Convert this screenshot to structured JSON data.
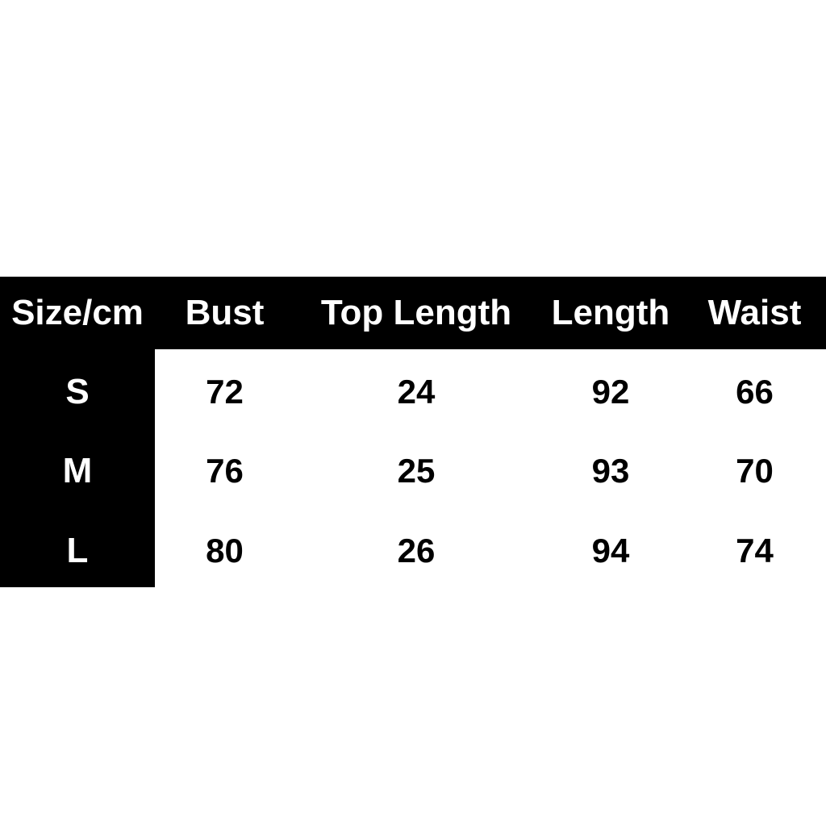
{
  "page": {
    "background": "#ffffff"
  },
  "chart_data": {
    "type": "table",
    "corner_header": "Size/cm",
    "unit": "cm",
    "columns": [
      "Bust",
      "Top Length",
      "Length",
      "Waist"
    ],
    "rows": [
      {
        "label": "S",
        "values": [
          "72",
          "24",
          "92",
          "66"
        ]
      },
      {
        "label": "M",
        "values": [
          "76",
          "25",
          "93",
          "70"
        ]
      },
      {
        "label": "L",
        "values": [
          "80",
          "26",
          "94",
          "74"
        ]
      }
    ],
    "colors": {
      "header_bg": "#000000",
      "header_text": "#ffffff",
      "row_label_bg": "#000000",
      "row_label_text": "#ffffff",
      "value_bg": "#ffffff",
      "value_text": "#000000"
    }
  }
}
